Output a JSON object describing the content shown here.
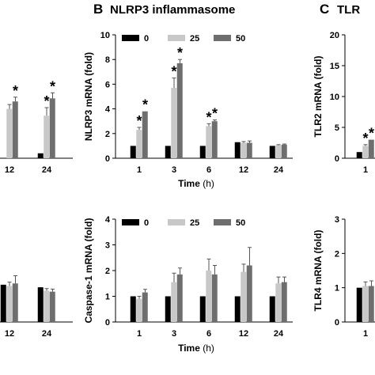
{
  "panels": {
    "B": {
      "letter": "B",
      "title": "NLRP3 inflammasome"
    },
    "C": {
      "letter": "C",
      "title": "TLR"
    }
  },
  "colors": {
    "s0": "#000000",
    "s25": "#c8c8c8",
    "s50": "#6e6e6e"
  },
  "chart_data": [
    {
      "id": "A-top",
      "type": "bar",
      "categories": [
        "12",
        "24"
      ],
      "series": [
        {
          "name": "0",
          "values": [
            null,
            0.4
          ],
          "errors": [
            null,
            0
          ]
        },
        {
          "name": "25",
          "values": [
            4.0,
            3.45
          ],
          "errors": [
            0.35,
            0.65
          ]
        },
        {
          "name": "50",
          "values": [
            4.6,
            4.85
          ],
          "errors": [
            0.35,
            0.45
          ]
        }
      ],
      "significant": [
        [
          false,
          false,
          true
        ],
        [
          false,
          true,
          true
        ]
      ],
      "ylim": [
        0,
        10
      ],
      "legend_labels": [],
      "ylabel": "",
      "xlabel": ""
    },
    {
      "id": "A-bottom",
      "type": "bar",
      "categories": [
        "12",
        "24"
      ],
      "series": [
        {
          "name": "0",
          "values": [
            1.45,
            1.35
          ],
          "errors": [
            0,
            0
          ]
        },
        {
          "name": "25",
          "values": [
            1.4,
            1.22
          ],
          "errors": [
            0.15,
            0.08
          ]
        },
        {
          "name": "50",
          "values": [
            1.5,
            1.18
          ],
          "errors": [
            0.3,
            0.1
          ]
        }
      ],
      "ylim": [
        0,
        4
      ],
      "legend_labels": [],
      "ylabel": "",
      "xlabel": ""
    },
    {
      "id": "B-top",
      "type": "bar",
      "categories": [
        "1",
        "3",
        "6",
        "12",
        "24"
      ],
      "series": [
        {
          "name": "0",
          "values": [
            1,
            1,
            1,
            1.3,
            1.0
          ],
          "errors": [
            0,
            0,
            0,
            0,
            0
          ]
        },
        {
          "name": "25",
          "values": [
            2.3,
            5.7,
            2.6,
            1.25,
            1.05
          ],
          "errors": [
            0.2,
            0.8,
            0.2,
            0.1,
            0.05
          ]
        },
        {
          "name": "50",
          "values": [
            3.8,
            7.7,
            3.0,
            1.25,
            1.1
          ],
          "errors": [
            0,
            0.3,
            0.1,
            0.15,
            0.05
          ]
        }
      ],
      "significant": [
        [
          false,
          true,
          true
        ],
        [
          false,
          true,
          true
        ],
        [
          false,
          true,
          true
        ],
        [
          false,
          false,
          false
        ],
        [
          false,
          false,
          false
        ]
      ],
      "ylim": [
        0,
        10
      ],
      "ticks": [
        "0",
        "2",
        "4",
        "6",
        "8",
        "10"
      ],
      "legend_labels": [
        "0",
        "25",
        "50"
      ],
      "ylabel": "NLRP3 mRNA  (fold)",
      "xlabel": "Time (h)"
    },
    {
      "id": "B-bottom",
      "type": "bar",
      "categories": [
        "1",
        "3",
        "6",
        "12",
        "24"
      ],
      "series": [
        {
          "name": "0",
          "values": [
            1,
            1,
            1,
            1,
            1
          ],
          "errors": [
            0,
            0,
            0,
            0,
            0
          ]
        },
        {
          "name": "25",
          "values": [
            0.9,
            1.55,
            2.0,
            1.95,
            1.5
          ],
          "errors": [
            0.1,
            0.35,
            0.45,
            0.3,
            0.25
          ]
        },
        {
          "name": "50",
          "values": [
            1.15,
            1.85,
            1.85,
            2.2,
            1.55
          ],
          "errors": [
            0.12,
            0.25,
            0.35,
            0.7,
            0.2
          ]
        }
      ],
      "ylim": [
        0,
        4
      ],
      "ticks": [
        "0",
        "1",
        "2",
        "3",
        "4"
      ],
      "legend_labels": [
        "0",
        "25",
        "50"
      ],
      "ylabel": "Caspase-1 mRNA  (fold)",
      "xlabel": "Time (h)"
    },
    {
      "id": "C-top",
      "type": "bar",
      "categories": [
        "1"
      ],
      "series": [
        {
          "name": "0",
          "values": [
            1.0
          ],
          "errors": [
            0
          ]
        },
        {
          "name": "25",
          "values": [
            2.0
          ],
          "errors": [
            0.2
          ]
        },
        {
          "name": "50",
          "values": [
            3.0
          ],
          "errors": [
            0
          ]
        }
      ],
      "significant": [
        [
          false,
          true,
          true
        ]
      ],
      "ylim": [
        0,
        20
      ],
      "ticks": [
        "0",
        "5",
        "10",
        "15",
        "20"
      ],
      "legend_labels": [],
      "ylabel": "TLR2 mRNA  (fold)",
      "xlabel": ""
    },
    {
      "id": "C-bottom",
      "type": "bar",
      "categories": [
        "1"
      ],
      "series": [
        {
          "name": "0",
          "values": [
            1.0
          ],
          "errors": [
            0
          ]
        },
        {
          "name": "25",
          "values": [
            1.05
          ],
          "errors": [
            0.12
          ]
        },
        {
          "name": "50",
          "values": [
            1.05
          ],
          "errors": [
            0.15
          ]
        }
      ],
      "ylim": [
        0,
        3
      ],
      "ticks": [
        "0",
        "1",
        "2",
        "3"
      ],
      "legend_labels": [],
      "ylabel": "TLR4 mRNA  (fold)",
      "xlabel": ""
    }
  ]
}
